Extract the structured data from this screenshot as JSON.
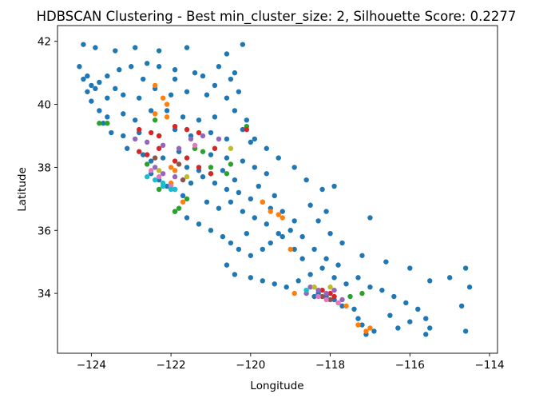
{
  "chart_data": {
    "type": "scatter",
    "title": "HDBSCAN Clustering - Best min_cluster_size: 2, Silhouette Score: 0.2277",
    "xlabel": "Longitude",
    "ylabel": "Latitude",
    "xlim": [
      -124.85,
      -113.8
    ],
    "ylim": [
      32.1,
      42.5
    ],
    "xticks": [
      -124,
      -122,
      -120,
      -118,
      -116,
      -114
    ],
    "yticks": [
      34,
      36,
      38,
      40,
      42
    ],
    "xtick_labels": [
      "−124",
      "−122",
      "−120",
      "−118",
      "−116",
      "−114"
    ],
    "ytick_labels": [
      "34",
      "36",
      "38",
      "40",
      "42"
    ],
    "grid": false,
    "legend": "none",
    "series": [
      {
        "color": "#1f77b4",
        "points": [
          [
            -124.2,
            41.9
          ],
          [
            -123.9,
            41.8
          ],
          [
            -123.4,
            41.7
          ],
          [
            -122.9,
            41.8
          ],
          [
            -122.3,
            41.7
          ],
          [
            -121.6,
            41.8
          ],
          [
            -120.6,
            41.6
          ],
          [
            -120.2,
            41.9
          ],
          [
            -124.3,
            41.2
          ],
          [
            -124.1,
            40.9
          ],
          [
            -124.2,
            40.8
          ],
          [
            -124.0,
            40.6
          ],
          [
            -123.9,
            40.5
          ],
          [
            -124.1,
            40.4
          ],
          [
            -123.8,
            40.7
          ],
          [
            -123.6,
            40.9
          ],
          [
            -123.3,
            41.1
          ],
          [
            -123.0,
            41.2
          ],
          [
            -122.6,
            41.3
          ],
          [
            -122.3,
            41.2
          ],
          [
            -121.9,
            41.1
          ],
          [
            -121.4,
            41.0
          ],
          [
            -120.8,
            41.2
          ],
          [
            -120.4,
            41.0
          ],
          [
            -123.6,
            40.2
          ],
          [
            -123.2,
            40.3
          ],
          [
            -122.8,
            40.2
          ],
          [
            -122.4,
            40.5
          ],
          [
            -122.0,
            40.3
          ],
          [
            -121.6,
            40.4
          ],
          [
            -121.1,
            40.3
          ],
          [
            -120.6,
            40.2
          ],
          [
            -120.3,
            40.4
          ],
          [
            -123.6,
            39.6
          ],
          [
            -123.2,
            39.7
          ],
          [
            -122.9,
            39.5
          ],
          [
            -122.5,
            39.8
          ],
          [
            -122.1,
            39.8
          ],
          [
            -121.7,
            39.6
          ],
          [
            -121.3,
            39.5
          ],
          [
            -120.9,
            39.6
          ],
          [
            -120.4,
            39.8
          ],
          [
            -120.1,
            39.5
          ],
          [
            -123.5,
            39.1
          ],
          [
            -123.2,
            39.0
          ],
          [
            -122.8,
            39.1
          ],
          [
            -122.3,
            39.0
          ],
          [
            -121.9,
            39.2
          ],
          [
            -121.5,
            39.0
          ],
          [
            -121.0,
            39.1
          ],
          [
            -120.6,
            38.9
          ],
          [
            -120.2,
            39.2
          ],
          [
            -119.9,
            38.9
          ],
          [
            -123.1,
            38.6
          ],
          [
            -122.7,
            38.4
          ],
          [
            -122.5,
            38.2
          ],
          [
            -122.2,
            38.3
          ],
          [
            -121.8,
            38.5
          ],
          [
            -121.4,
            38.6
          ],
          [
            -121.0,
            38.4
          ],
          [
            -120.6,
            38.3
          ],
          [
            -120.2,
            38.2
          ],
          [
            -119.9,
            38.0
          ],
          [
            -119.6,
            37.8
          ],
          [
            -122.5,
            37.8
          ],
          [
            -122.3,
            37.6
          ],
          [
            -122.1,
            37.4
          ],
          [
            -121.9,
            37.3
          ],
          [
            -121.7,
            37.1
          ],
          [
            -121.5,
            37.5
          ],
          [
            -121.2,
            37.7
          ],
          [
            -120.9,
            37.5
          ],
          [
            -120.6,
            37.3
          ],
          [
            -120.3,
            37.2
          ],
          [
            -120.0,
            37.0
          ],
          [
            -119.7,
            36.9
          ],
          [
            -119.5,
            36.7
          ],
          [
            -121.9,
            36.6
          ],
          [
            -121.6,
            36.4
          ],
          [
            -121.3,
            36.2
          ],
          [
            -121.0,
            36.0
          ],
          [
            -120.7,
            35.8
          ],
          [
            -120.5,
            35.6
          ],
          [
            -120.3,
            35.4
          ],
          [
            -120.0,
            35.2
          ],
          [
            -119.7,
            35.4
          ],
          [
            -119.5,
            35.6
          ],
          [
            -119.2,
            35.8
          ],
          [
            -119.0,
            36.0
          ],
          [
            -118.9,
            35.4
          ],
          [
            -118.7,
            35.1
          ],
          [
            -120.6,
            34.9
          ],
          [
            -120.4,
            34.6
          ],
          [
            -120.0,
            34.5
          ],
          [
            -119.7,
            34.4
          ],
          [
            -119.4,
            34.3
          ],
          [
            -119.1,
            34.2
          ],
          [
            -118.8,
            34.4
          ],
          [
            -118.5,
            34.6
          ],
          [
            -118.2,
            34.8
          ],
          [
            -117.9,
            34.5
          ],
          [
            -117.6,
            34.3
          ],
          [
            -117.3,
            34.5
          ],
          [
            -117.0,
            34.2
          ],
          [
            -116.7,
            34.1
          ],
          [
            -116.4,
            33.9
          ],
          [
            -116.1,
            33.7
          ],
          [
            -115.8,
            33.5
          ],
          [
            -115.6,
            33.2
          ],
          [
            -115.5,
            32.9
          ],
          [
            -115.6,
            32.7
          ],
          [
            -116.3,
            32.9
          ],
          [
            -116.9,
            32.8
          ],
          [
            -117.1,
            32.7
          ],
          [
            -117.2,
            33.0
          ],
          [
            -117.3,
            33.2
          ],
          [
            -117.4,
            33.5
          ],
          [
            -117.7,
            33.6
          ],
          [
            -117.9,
            33.8
          ],
          [
            -118.1,
            33.9
          ],
          [
            -118.3,
            34.0
          ],
          [
            -118.4,
            33.9
          ],
          [
            -116.5,
            33.3
          ],
          [
            -116.0,
            33.1
          ],
          [
            -114.6,
            34.8
          ],
          [
            -114.5,
            34.2
          ],
          [
            -114.7,
            33.6
          ],
          [
            -114.6,
            32.8
          ],
          [
            -115.0,
            34.5
          ],
          [
            -115.5,
            34.4
          ],
          [
            -116.0,
            34.8
          ],
          [
            -116.6,
            35.0
          ],
          [
            -117.2,
            35.2
          ],
          [
            -117.7,
            35.6
          ],
          [
            -118.0,
            35.9
          ],
          [
            -118.3,
            36.3
          ],
          [
            -118.5,
            36.8
          ],
          [
            -118.2,
            37.3
          ],
          [
            -118.6,
            37.6
          ],
          [
            -118.9,
            38.0
          ],
          [
            -119.3,
            38.3
          ],
          [
            -119.6,
            38.6
          ],
          [
            -120.0,
            38.8
          ],
          [
            -117.0,
            36.4
          ],
          [
            -118.1,
            36.6
          ],
          [
            -117.9,
            37.4
          ],
          [
            -124.0,
            40.1
          ],
          [
            -123.8,
            39.8
          ],
          [
            -123.7,
            39.4
          ],
          [
            -121.2,
            40.9
          ],
          [
            -120.9,
            40.6
          ],
          [
            -120.5,
            40.8
          ],
          [
            -121.9,
            40.8
          ],
          [
            -122.7,
            40.8
          ],
          [
            -123.4,
            40.5
          ],
          [
            -121.6,
            38.0
          ],
          [
            -121.3,
            37.9
          ],
          [
            -121.0,
            37.8
          ],
          [
            -120.7,
            37.9
          ],
          [
            -120.4,
            37.6
          ],
          [
            -119.8,
            37.4
          ],
          [
            -119.4,
            37.1
          ],
          [
            -119.2,
            36.6
          ],
          [
            -118.9,
            36.3
          ],
          [
            -118.7,
            35.8
          ],
          [
            -118.4,
            35.4
          ],
          [
            -118.1,
            35.1
          ],
          [
            -117.8,
            34.9
          ],
          [
            -119.9,
            36.4
          ],
          [
            -120.2,
            36.6
          ],
          [
            -120.5,
            36.9
          ],
          [
            -120.8,
            36.7
          ],
          [
            -121.1,
            36.9
          ],
          [
            -119.6,
            36.2
          ],
          [
            -119.3,
            35.9
          ],
          [
            -120.1,
            35.9
          ]
        ]
      },
      {
        "color": "#ff7f0e",
        "points": [
          [
            -122.4,
            40.6
          ],
          [
            -122.2,
            40.2
          ],
          [
            -122.1,
            40.0
          ],
          [
            -122.4,
            39.7
          ],
          [
            -122.1,
            39.6
          ],
          [
            -119.7,
            36.9
          ],
          [
            -119.5,
            36.6
          ],
          [
            -119.3,
            36.5
          ],
          [
            -119.2,
            36.4
          ],
          [
            -118.9,
            34.0
          ],
          [
            -117.8,
            33.7
          ],
          [
            -117.6,
            33.6
          ],
          [
            -117.1,
            32.8
          ],
          [
            -117.0,
            32.9
          ],
          [
            -117.3,
            33.0
          ],
          [
            -122.0,
            37.5
          ],
          [
            -121.7,
            36.9
          ],
          [
            -122.0,
            38.0
          ],
          [
            -121.9,
            37.9
          ],
          [
            -119.0,
            35.4
          ]
        ]
      },
      {
        "color": "#2ca02c",
        "points": [
          [
            -123.8,
            39.4
          ],
          [
            -123.6,
            39.4
          ],
          [
            -122.4,
            39.5
          ],
          [
            -120.1,
            39.3
          ],
          [
            -122.6,
            38.1
          ],
          [
            -121.2,
            38.5
          ],
          [
            -120.5,
            38.1
          ],
          [
            -121.0,
            38.0
          ],
          [
            -120.6,
            37.8
          ],
          [
            -121.9,
            36.6
          ],
          [
            -121.8,
            36.7
          ],
          [
            -117.2,
            34.0
          ],
          [
            -117.5,
            33.9
          ],
          [
            -121.6,
            37.0
          ],
          [
            -122.3,
            37.3
          ],
          [
            -121.4,
            38.6
          ]
        ]
      },
      {
        "color": "#d62728",
        "points": [
          [
            -122.8,
            39.2
          ],
          [
            -122.5,
            39.1
          ],
          [
            -122.3,
            39.0
          ],
          [
            -121.9,
            39.3
          ],
          [
            -121.6,
            39.2
          ],
          [
            -121.3,
            39.1
          ],
          [
            -120.1,
            39.2
          ],
          [
            -122.8,
            38.5
          ],
          [
            -122.6,
            38.4
          ],
          [
            -122.3,
            38.6
          ],
          [
            -121.9,
            38.2
          ],
          [
            -121.6,
            38.3
          ],
          [
            -121.3,
            38.0
          ],
          [
            -121.0,
            37.8
          ],
          [
            -120.9,
            38.6
          ],
          [
            -118.2,
            34.1
          ],
          [
            -118.0,
            34.0
          ],
          [
            -117.9,
            33.9
          ]
        ]
      },
      {
        "color": "#9467bd",
        "points": [
          [
            -122.9,
            38.9
          ],
          [
            -122.6,
            38.8
          ],
          [
            -122.2,
            38.7
          ],
          [
            -121.8,
            38.6
          ],
          [
            -121.5,
            38.9
          ],
          [
            -121.2,
            39.0
          ],
          [
            -120.8,
            38.9
          ],
          [
            -122.4,
            38.0
          ],
          [
            -122.2,
            37.8
          ],
          [
            -121.9,
            37.7
          ],
          [
            -118.5,
            34.2
          ],
          [
            -118.3,
            34.1
          ],
          [
            -118.1,
            34.0
          ],
          [
            -117.9,
            34.1
          ],
          [
            -118.6,
            34.0
          ],
          [
            -117.7,
            33.8
          ]
        ]
      },
      {
        "color": "#8c564b",
        "points": [
          [
            -122.4,
            38.3
          ],
          [
            -121.8,
            38.1
          ],
          [
            -118.2,
            33.9
          ],
          [
            -118.0,
            33.8
          ],
          [
            -121.7,
            37.6
          ]
        ]
      },
      {
        "color": "#e377c2",
        "points": [
          [
            -122.5,
            37.9
          ],
          [
            -122.3,
            37.7
          ],
          [
            -122.0,
            37.4
          ],
          [
            -118.3,
            33.9
          ],
          [
            -118.1,
            33.8
          ],
          [
            -117.8,
            33.7
          ],
          [
            -121.4,
            38.7
          ]
        ]
      },
      {
        "color": "#bcbd22",
        "points": [
          [
            -122.3,
            37.9
          ],
          [
            -121.6,
            37.7
          ],
          [
            -118.4,
            34.2
          ],
          [
            -118.0,
            34.2
          ],
          [
            -120.5,
            38.6
          ]
        ]
      },
      {
        "color": "#17becf",
        "points": [
          [
            -122.6,
            37.7
          ],
          [
            -122.4,
            37.6
          ],
          [
            -122.2,
            37.5
          ],
          [
            -122.0,
            37.3
          ],
          [
            -121.9,
            37.3
          ],
          [
            -122.2,
            37.4
          ],
          [
            -118.6,
            34.1
          ]
        ]
      }
    ]
  }
}
